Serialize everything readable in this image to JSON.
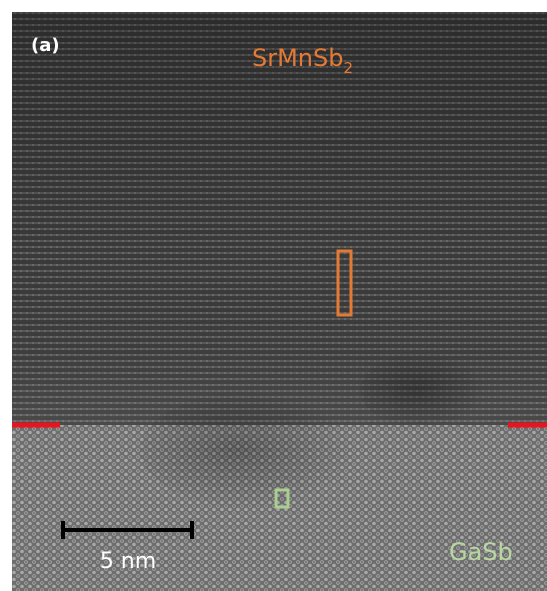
{
  "panel_label": "(a)",
  "labels": {
    "top_layer": {
      "text": "SrMnSb",
      "subscript": "2"
    },
    "substrate": "GaSb"
  },
  "scale_bar": "5 nm"
}
